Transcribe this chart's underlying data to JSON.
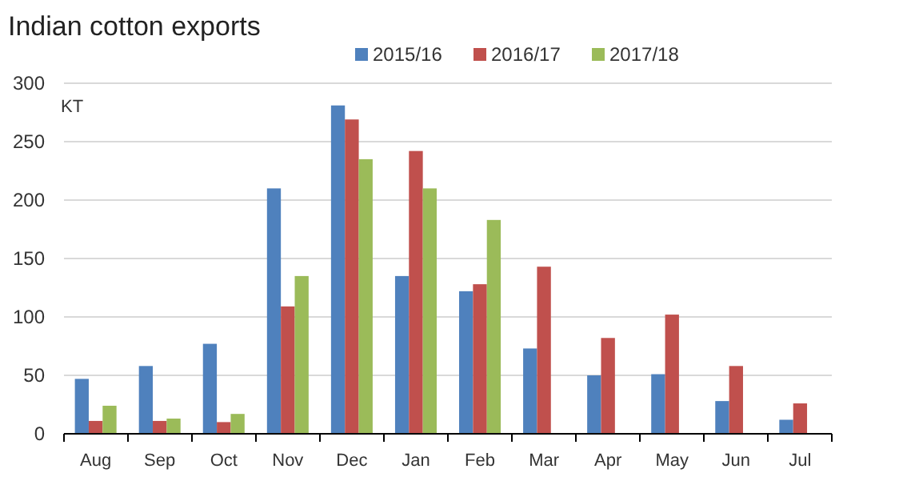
{
  "chart_data": {
    "type": "bar",
    "title": "Indian cotton exports",
    "ylabel": "KT",
    "categories": [
      "Aug",
      "Sep",
      "Oct",
      "Nov",
      "Dec",
      "Jan",
      "Feb",
      "Mar",
      "Apr",
      "May",
      "Jun",
      "Jul"
    ],
    "series": [
      {
        "name": "2015/16",
        "color": "#4f81bd",
        "values": [
          47,
          58,
          77,
          210,
          281,
          135,
          122,
          73,
          50,
          51,
          28,
          12
        ]
      },
      {
        "name": "2016/17",
        "color": "#c0504d",
        "values": [
          11,
          11,
          10,
          109,
          269,
          242,
          128,
          143,
          82,
          102,
          58,
          26
        ]
      },
      {
        "name": "2017/18",
        "color": "#9bbb59",
        "values": [
          24,
          13,
          17,
          135,
          235,
          210,
          183,
          null,
          null,
          null,
          null,
          null
        ]
      }
    ],
    "ylim": [
      0,
      300
    ],
    "yticks": [
      0,
      50,
      100,
      150,
      200,
      250,
      300
    ],
    "grid": "y",
    "legend": "top"
  }
}
